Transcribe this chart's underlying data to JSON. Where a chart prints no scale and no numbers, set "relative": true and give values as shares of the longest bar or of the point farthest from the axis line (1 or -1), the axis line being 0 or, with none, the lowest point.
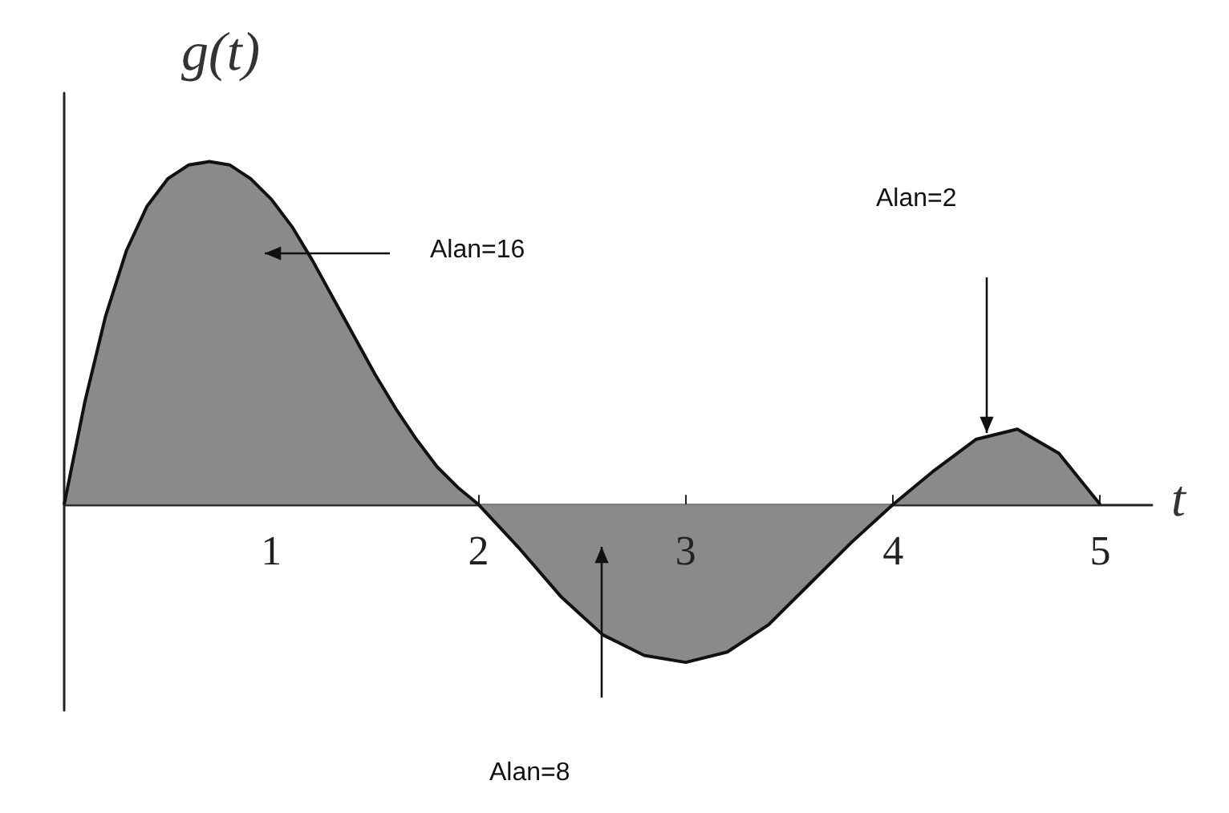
{
  "chart_data": {
    "type": "area",
    "relative": true,
    "ylabel": "g(t)",
    "xlabel": "t",
    "x": [
      0,
      0.1,
      0.2,
      0.3,
      0.4,
      0.5,
      0.6,
      0.7,
      0.8,
      0.9,
      1.0,
      1.1,
      1.2,
      1.3,
      1.4,
      1.5,
      1.6,
      1.7,
      1.8,
      1.9,
      2.0,
      2.2,
      2.4,
      2.6,
      2.8,
      3.0,
      3.2,
      3.4,
      3.6,
      3.8,
      4.0,
      4.2,
      4.4,
      4.6,
      4.8,
      5.0
    ],
    "series": [
      {
        "color": "#111111",
        "values": [
          0,
          0.3,
          0.55,
          0.74,
          0.87,
          0.95,
          0.99,
          1.0,
          0.99,
          0.95,
          0.89,
          0.81,
          0.71,
          0.6,
          0.49,
          0.38,
          0.28,
          0.19,
          0.11,
          0.05,
          0,
          -0.13,
          -0.27,
          -0.38,
          -0.44,
          -0.46,
          -0.43,
          -0.35,
          -0.23,
          -0.11,
          0,
          0.1,
          0.19,
          0.22,
          0.15,
          0
        ]
      }
    ],
    "xlim": [
      0,
      5.25
    ],
    "xticks": [
      1,
      2,
      3,
      4,
      5
    ],
    "marker": "none",
    "line_style": "solid",
    "annotations": [
      "Alan=16",
      "Alan=8",
      "Alan=2"
    ]
  }
}
